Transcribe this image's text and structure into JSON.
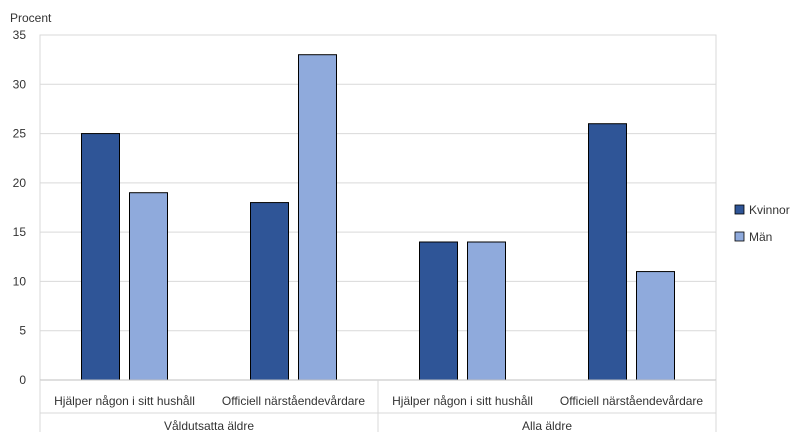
{
  "chart_data": {
    "type": "bar",
    "ylabel": "Procent",
    "ylim": [
      0,
      35
    ],
    "yticks": [
      0,
      5,
      10,
      15,
      20,
      25,
      30,
      35
    ],
    "grid": true,
    "legend_position": "right",
    "groups": [
      {
        "label": "Våldutsatta äldre",
        "categories": [
          "Hjälper någon i sitt hushåll",
          "Officiell närståendevårdare"
        ]
      },
      {
        "label": "Alla äldre",
        "categories": [
          "Hjälper någon i sitt hushåll",
          "Officiell närståendevårdare"
        ]
      }
    ],
    "series": [
      {
        "name": "Kvinnor",
        "color": "#2f5597",
        "values": [
          25,
          18,
          14,
          26
        ]
      },
      {
        "name": "Män",
        "color": "#8faadc",
        "values": [
          19,
          33,
          14,
          11
        ]
      }
    ]
  }
}
